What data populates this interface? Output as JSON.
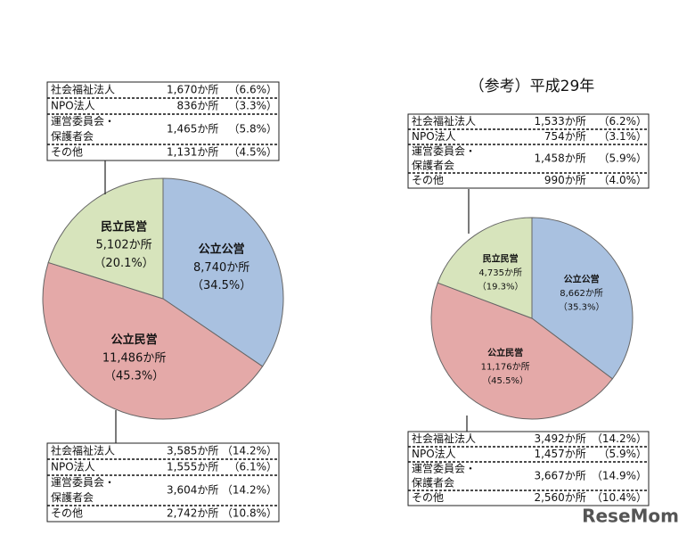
{
  "chart_data": [
    {
      "type": "pie",
      "categories": [
        "公立公営",
        "公立民営",
        "民立民営"
      ],
      "values": [
        8740,
        11486,
        5102
      ],
      "value_labels": [
        "8,740か所",
        "11,486か所",
        "5,102か所"
      ],
      "percent_labels": [
        "（34.5%）",
        "（45.3%）",
        "（20.1%）"
      ],
      "colors": [
        "#a9c1e0",
        "#e4a9a8",
        "#d7e4bc"
      ],
      "top_table": [
        {
          "name": "社会福祉法人",
          "count": "1,670か所",
          "share": "（6.6%）"
        },
        {
          "name": "NPO法人",
          "count": "836か所",
          "share": "（3.3%）"
        },
        {
          "name": [
            "運営委員会・",
            "保護者会"
          ],
          "count": "1,465か所",
          "share": "（5.8%）"
        },
        {
          "name": "その他",
          "count": "1,131か所",
          "share": "（4.5%）"
        }
      ],
      "bottom_table": [
        {
          "name": "社会福祉法人",
          "count": "3,585か所",
          "share": "（14.2%）"
        },
        {
          "name": "NPO法人",
          "count": "1,555か所",
          "share": "（6.1%）"
        },
        {
          "name": [
            "運営委員会・",
            "保護者会"
          ],
          "count": "3,604か所",
          "share": "（14.2%）"
        },
        {
          "name": "その他",
          "count": "2,742か所",
          "share": "（10.8%）"
        }
      ]
    },
    {
      "type": "pie",
      "title": "（参考）平成29年",
      "categories": [
        "公立公営",
        "公立民営",
        "民立民営"
      ],
      "values": [
        8662,
        11176,
        4735
      ],
      "value_labels": [
        "8,662か所",
        "11,176か所",
        "4,735か所"
      ],
      "percent_labels": [
        "（35.3%）",
        "（45.5%）",
        "（19.3%）"
      ],
      "colors": [
        "#a9c1e0",
        "#e4a9a8",
        "#d7e4bc"
      ],
      "top_table": [
        {
          "name": "社会福祉法人",
          "count": "1,533か所",
          "share": "（6.2%）"
        },
        {
          "name": "NPO法人",
          "count": "754か所",
          "share": "（3.1%）"
        },
        {
          "name": [
            "運営委員会・",
            "保護者会"
          ],
          "count": "1,458か所",
          "share": "（5.9%）"
        },
        {
          "name": "その他",
          "count": "990か所",
          "share": "（4.0%）"
        }
      ],
      "bottom_table": [
        {
          "name": "社会福祉法人",
          "count": "3,492か所",
          "share": "（14.2%）"
        },
        {
          "name": "NPO法人",
          "count": "1,457か所",
          "share": "（5.9%）"
        },
        {
          "name": [
            "運営委員会・",
            "保護者会"
          ],
          "count": "3,667か所",
          "share": "（14.9%）"
        },
        {
          "name": "その他",
          "count": "2,560か所",
          "share": "（10.4%）"
        }
      ]
    }
  ],
  "watermark": "ReseMom"
}
